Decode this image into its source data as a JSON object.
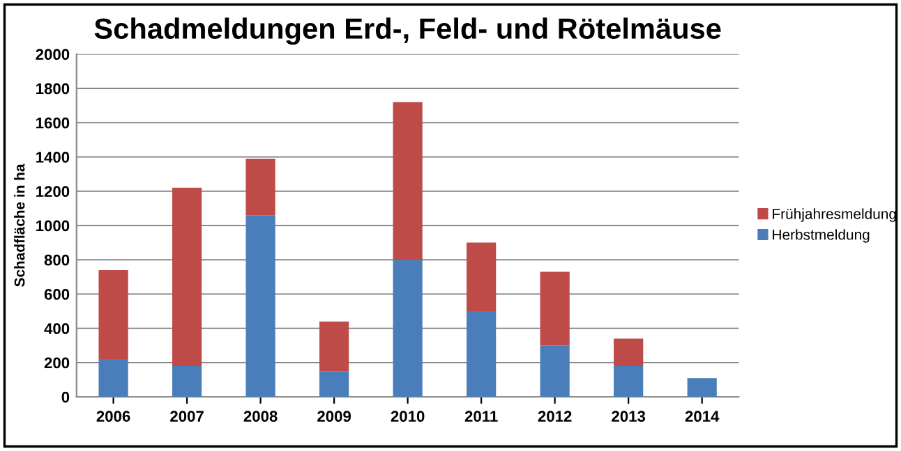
{
  "chart_data": {
    "type": "bar",
    "title": "Schadmeldungen Erd-, Feld- und Rötelmäuse",
    "ylabel": "Schadfläche in ha",
    "categories": [
      "2006",
      "2007",
      "2008",
      "2009",
      "2010",
      "2011",
      "2012",
      "2013",
      "2014"
    ],
    "stacked": true,
    "series": [
      {
        "name": "Herbstmeldung",
        "color": "#4a7ebb",
        "values": [
          220,
          180,
          1060,
          150,
          800,
          500,
          300,
          180,
          110
        ]
      },
      {
        "name": "Frühjahresmeldung",
        "color": "#be4b48",
        "values": [
          520,
          1040,
          330,
          290,
          920,
          400,
          430,
          160,
          null
        ]
      }
    ],
    "ylim": [
      0,
      2000
    ],
    "yticks": [
      0,
      200,
      400,
      600,
      800,
      1000,
      1200,
      1400,
      1600,
      1800,
      2000
    ],
    "grid": "y",
    "legend": "right"
  }
}
